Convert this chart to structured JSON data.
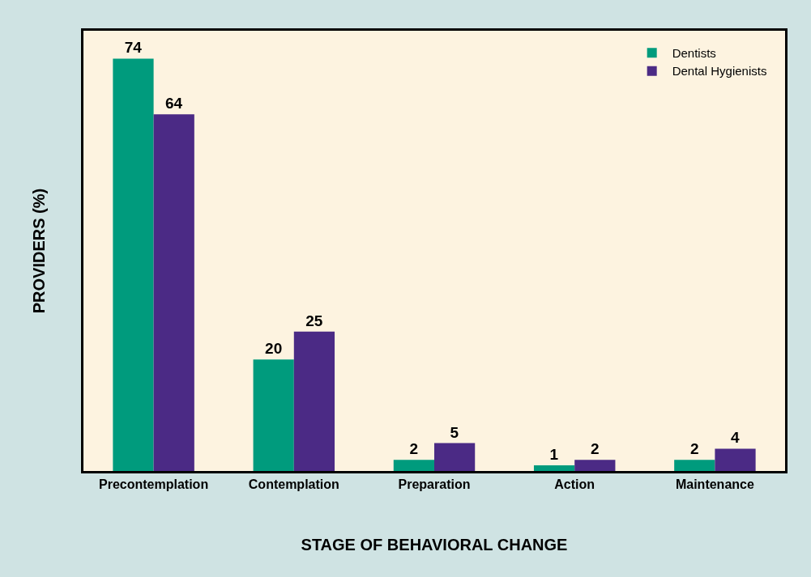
{
  "chart_data": {
    "type": "bar",
    "xlabel": "STAGE OF BEHAVIORAL CHANGE",
    "ylabel": "PROVIDERS (%)",
    "categories": [
      "Precontemplation",
      "Contemplation",
      "Preparation",
      "Action",
      "Maintenance"
    ],
    "series": [
      {
        "name": "Dentists",
        "color": "#009b7d",
        "values": [
          74,
          20,
          2,
          1,
          2
        ]
      },
      {
        "name": "Dental Hygienists",
        "color": "#4b2a85",
        "values": [
          64,
          25,
          5,
          2,
          4
        ]
      }
    ],
    "ylim": [
      0,
      79
    ],
    "data_labels": true,
    "legend": "top right",
    "grid": false,
    "tick_labels": "x"
  }
}
